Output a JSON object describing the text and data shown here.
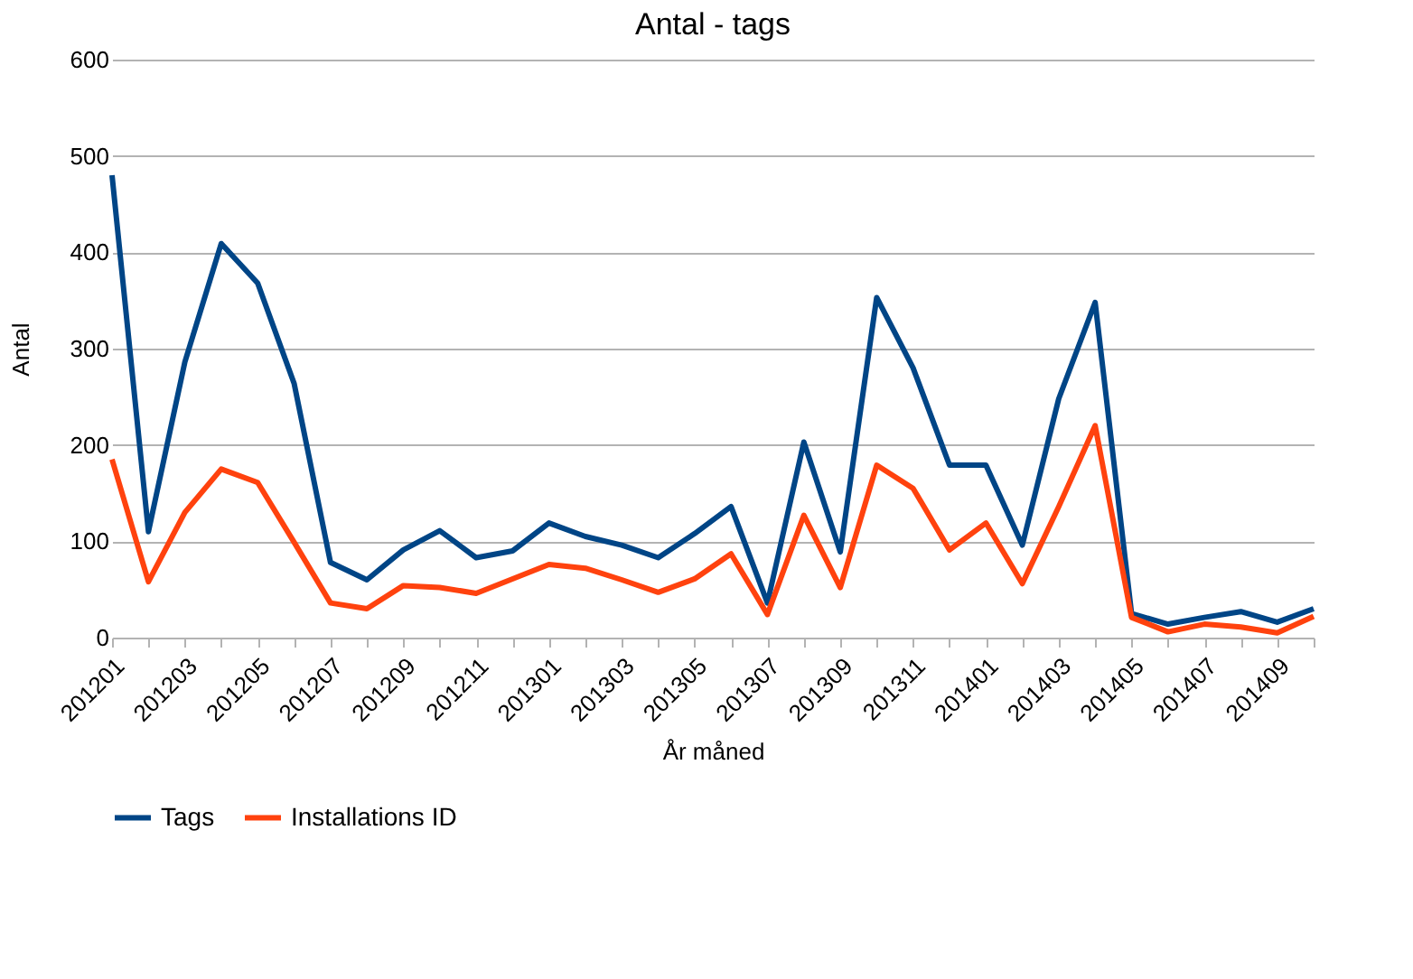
{
  "chart_data": {
    "type": "line",
    "title": "Antal - tags",
    "xlabel": "År måned",
    "ylabel": "Antal",
    "categories": [
      "201201",
      null,
      "201203",
      null,
      "201205",
      null,
      "201207",
      null,
      "201209",
      null,
      "201211",
      null,
      "201301",
      null,
      "201303",
      null,
      "201305",
      null,
      "201307",
      null,
      "201309",
      null,
      "201311",
      null,
      "201401",
      null,
      "201403",
      null,
      "201405",
      null,
      "201407",
      null,
      "201409",
      null
    ],
    "series": [
      {
        "name": "Tags",
        "color": "#004586",
        "values": [
          480,
          110,
          286,
          409,
          368,
          264,
          78,
          60,
          91,
          111,
          83,
          90,
          119,
          105,
          96,
          83,
          108,
          136,
          36,
          203,
          89,
          353,
          280,
          179,
          179,
          96,
          248,
          348,
          25,
          14,
          21,
          27,
          16,
          30
        ]
      },
      {
        "name": "Installations ID",
        "color": "#ff420e",
        "values": [
          185,
          58,
          130,
          175,
          161,
          99,
          36,
          30,
          54,
          52,
          46,
          61,
          76,
          72,
          60,
          47,
          61,
          87,
          24,
          127,
          52,
          179,
          155,
          91,
          119,
          56,
          136,
          220,
          21,
          6,
          14,
          11,
          5,
          22
        ]
      }
    ],
    "ylim": [
      0,
      600
    ],
    "yticks": [
      0,
      100,
      200,
      300,
      400,
      500,
      600
    ],
    "grid": "y",
    "legend": "bottom",
    "line_style": "solid",
    "marker": "none"
  }
}
